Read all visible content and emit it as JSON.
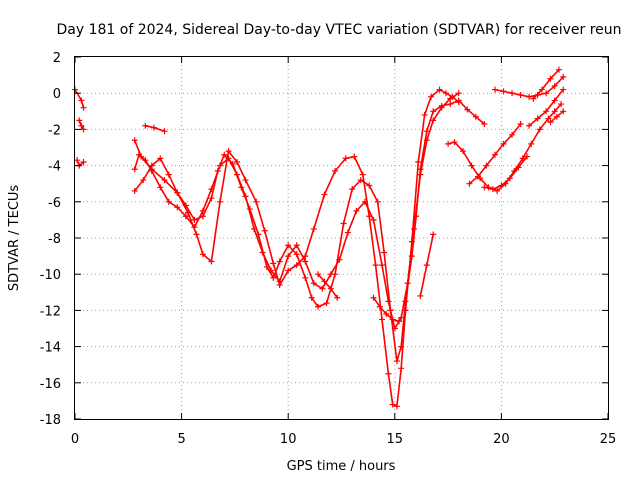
{
  "chart_data": {
    "type": "scatter",
    "title": "Day 181 of 2024, Sidereal Day-to-day VTEC variation (SDTVAR) for receiver reun",
    "xlabel": "GPS time / hours",
    "ylabel": "SDTVAR / TECUs",
    "xlim": [
      0,
      25
    ],
    "ylim": [
      -18,
      2
    ],
    "xticks": [
      0,
      5,
      10,
      15,
      20,
      25
    ],
    "yticks": [
      2,
      0,
      -2,
      -4,
      -6,
      -8,
      -10,
      -12,
      -14,
      -16,
      -18
    ],
    "grid": true,
    "marker": "plus",
    "color": "#ff0000",
    "series": [
      {
        "x": [
          0.0,
          0.3,
          0.4
        ],
        "y": [
          0.2,
          -0.4,
          -0.8
        ]
      },
      {
        "x": [
          0.2,
          0.3,
          0.4
        ],
        "y": [
          -1.5,
          -1.8,
          -2.0
        ]
      },
      {
        "x": [
          0.1,
          0.2,
          0.4
        ],
        "y": [
          -3.7,
          -4.0,
          -3.8
        ]
      },
      {
        "x": [
          3.3,
          3.7,
          4.2
        ],
        "y": [
          -1.8,
          -1.9,
          -2.1
        ]
      },
      {
        "x": [
          2.8,
          3.1,
          3.6,
          4.2,
          4.8,
          5.3,
          5.7,
          6.0,
          6.4,
          6.8,
          7.2,
          7.6,
          8.0,
          8.5,
          8.9,
          9.3,
          9.6,
          10.0,
          10.4,
          10.8,
          11.2,
          11.7,
          12.2,
          12.7,
          13.1,
          13.5,
          13.8,
          14.1,
          14.4,
          14.7,
          14.9,
          15.1,
          15.3,
          15.5,
          15.8,
          16.1,
          16.4,
          16.7,
          17.1,
          17.4,
          17.7,
          18.0
        ],
        "y": [
          -2.6,
          -3.5,
          -4.2,
          -4.8,
          -5.5,
          -6.6,
          -7.8,
          -8.9,
          -9.3,
          -6.0,
          -3.2,
          -3.8,
          -4.8,
          -6.0,
          -7.6,
          -9.4,
          -10.6,
          -9.8,
          -9.5,
          -9.0,
          -7.5,
          -5.6,
          -4.3,
          -3.6,
          -3.5,
          -4.5,
          -6.8,
          -9.5,
          -12.5,
          -15.5,
          -17.2,
          -17.3,
          -15.2,
          -12.0,
          -8.2,
          -3.8,
          -1.2,
          -0.2,
          0.2,
          0.0,
          -0.2,
          -0.5
        ]
      },
      {
        "x": [
          2.8,
          3.2,
          3.6,
          4.0,
          4.4,
          4.8,
          5.2,
          5.6,
          6.0,
          6.4,
          6.7,
          7.0,
          7.4,
          7.8,
          8.2,
          8.6,
          9.0,
          9.3,
          9.6,
          10.0,
          10.4,
          10.8,
          11.1,
          11.4,
          11.8,
          12.2,
          12.6,
          13.0,
          13.4,
          13.8,
          14.2,
          14.5,
          14.8,
          15.1,
          15.3,
          15.5,
          15.8,
          16.0,
          16.2,
          16.5,
          16.8,
          17.2,
          17.6,
          18.0,
          18.4,
          18.8,
          19.2
        ],
        "y": [
          -5.4,
          -4.8,
          -4.0,
          -3.6,
          -4.5,
          -5.5,
          -6.2,
          -7.0,
          -6.8,
          -5.8,
          -4.3,
          -3.4,
          -3.9,
          -5.2,
          -6.4,
          -7.8,
          -9.6,
          -10.2,
          -9.3,
          -8.4,
          -8.9,
          -10.2,
          -11.3,
          -11.8,
          -11.6,
          -10.0,
          -7.2,
          -5.3,
          -4.8,
          -5.1,
          -6.0,
          -8.8,
          -12.0,
          -14.8,
          -14.0,
          -11.5,
          -9.0,
          -6.8,
          -4.2,
          -2.1,
          -1.0,
          -0.7,
          -0.6,
          -0.4,
          -0.9,
          -1.3,
          -1.7
        ]
      },
      {
        "x": [
          2.8,
          3.0,
          3.3,
          3.6,
          4.0,
          4.4,
          4.8,
          5.2,
          5.6,
          6.0,
          6.4,
          6.8,
          7.2,
          7.6,
          8.0,
          8.4,
          8.8,
          9.2,
          9.6,
          10.0,
          10.4,
          10.8,
          11.2,
          11.6,
          12.0,
          12.4,
          12.8,
          13.2,
          13.6,
          14.0,
          14.4,
          14.7,
          15.0,
          15.3,
          15.6,
          15.9,
          16.2,
          16.5,
          16.8,
          17.2,
          17.6,
          18.0
        ],
        "y": [
          -4.2,
          -3.4,
          -3.7,
          -4.3,
          -5.2,
          -6.0,
          -6.3,
          -6.8,
          -7.4,
          -6.5,
          -5.3,
          -4.0,
          -3.6,
          -4.5,
          -5.7,
          -7.5,
          -8.8,
          -9.8,
          -10.4,
          -9.0,
          -8.4,
          -9.3,
          -10.5,
          -10.8,
          -10.0,
          -9.2,
          -7.7,
          -6.5,
          -6.0,
          -7.0,
          -9.5,
          -11.5,
          -13.0,
          -12.4,
          -10.5,
          -7.5,
          -4.5,
          -2.6,
          -1.5,
          -0.8,
          -0.3,
          0.0
        ]
      },
      {
        "x": [
          14.0,
          14.3,
          14.6,
          14.9,
          15.2
        ],
        "y": [
          -11.3,
          -11.8,
          -12.2,
          -12.5,
          -12.6
        ]
      },
      {
        "x": [
          11.4,
          11.7,
          12.0,
          12.3
        ],
        "y": [
          -10.0,
          -10.4,
          -10.8,
          -11.3
        ]
      },
      {
        "x": [
          16.2,
          16.5,
          16.8
        ],
        "y": [
          -11.2,
          -9.5,
          -7.8
        ]
      },
      {
        "x": [
          17.5,
          17.8,
          18.2,
          18.6,
          19.0,
          19.4,
          19.8,
          20.2,
          20.6,
          21.0,
          21.4,
          21.8,
          22.2,
          22.5,
          22.8
        ],
        "y": [
          -2.8,
          -2.7,
          -3.2,
          -4.0,
          -4.7,
          -5.2,
          -5.4,
          -5.0,
          -4.3,
          -3.6,
          -2.8,
          -2.0,
          -1.4,
          -1.0,
          -0.6
        ]
      },
      {
        "x": [
          18.5,
          18.9,
          19.3,
          19.7,
          20.1,
          20.5,
          20.9
        ],
        "y": [
          -5.0,
          -4.6,
          -4.0,
          -3.4,
          -2.8,
          -2.3,
          -1.7
        ]
      },
      {
        "x": [
          19.2,
          19.6,
          20.0,
          20.4,
          20.8,
          21.2
        ],
        "y": [
          -5.2,
          -5.3,
          -5.1,
          -4.7,
          -4.1,
          -3.5
        ]
      },
      {
        "x": [
          19.7,
          20.1,
          20.5,
          20.9,
          21.3,
          21.7,
          22.1,
          22.5,
          22.9
        ],
        "y": [
          0.2,
          0.1,
          0.0,
          -0.1,
          -0.2,
          -0.1,
          0.0,
          0.4,
          0.9
        ]
      },
      {
        "x": [
          21.5,
          21.9,
          22.3,
          22.7
        ],
        "y": [
          -0.3,
          0.2,
          0.8,
          1.3
        ]
      },
      {
        "x": [
          21.3,
          21.7,
          22.1,
          22.5,
          22.9
        ],
        "y": [
          -1.8,
          -1.4,
          -1.0,
          -0.4,
          0.2
        ]
      },
      {
        "x": [
          22.3,
          22.6,
          22.9
        ],
        "y": [
          -1.6,
          -1.3,
          -1.0
        ]
      }
    ]
  }
}
